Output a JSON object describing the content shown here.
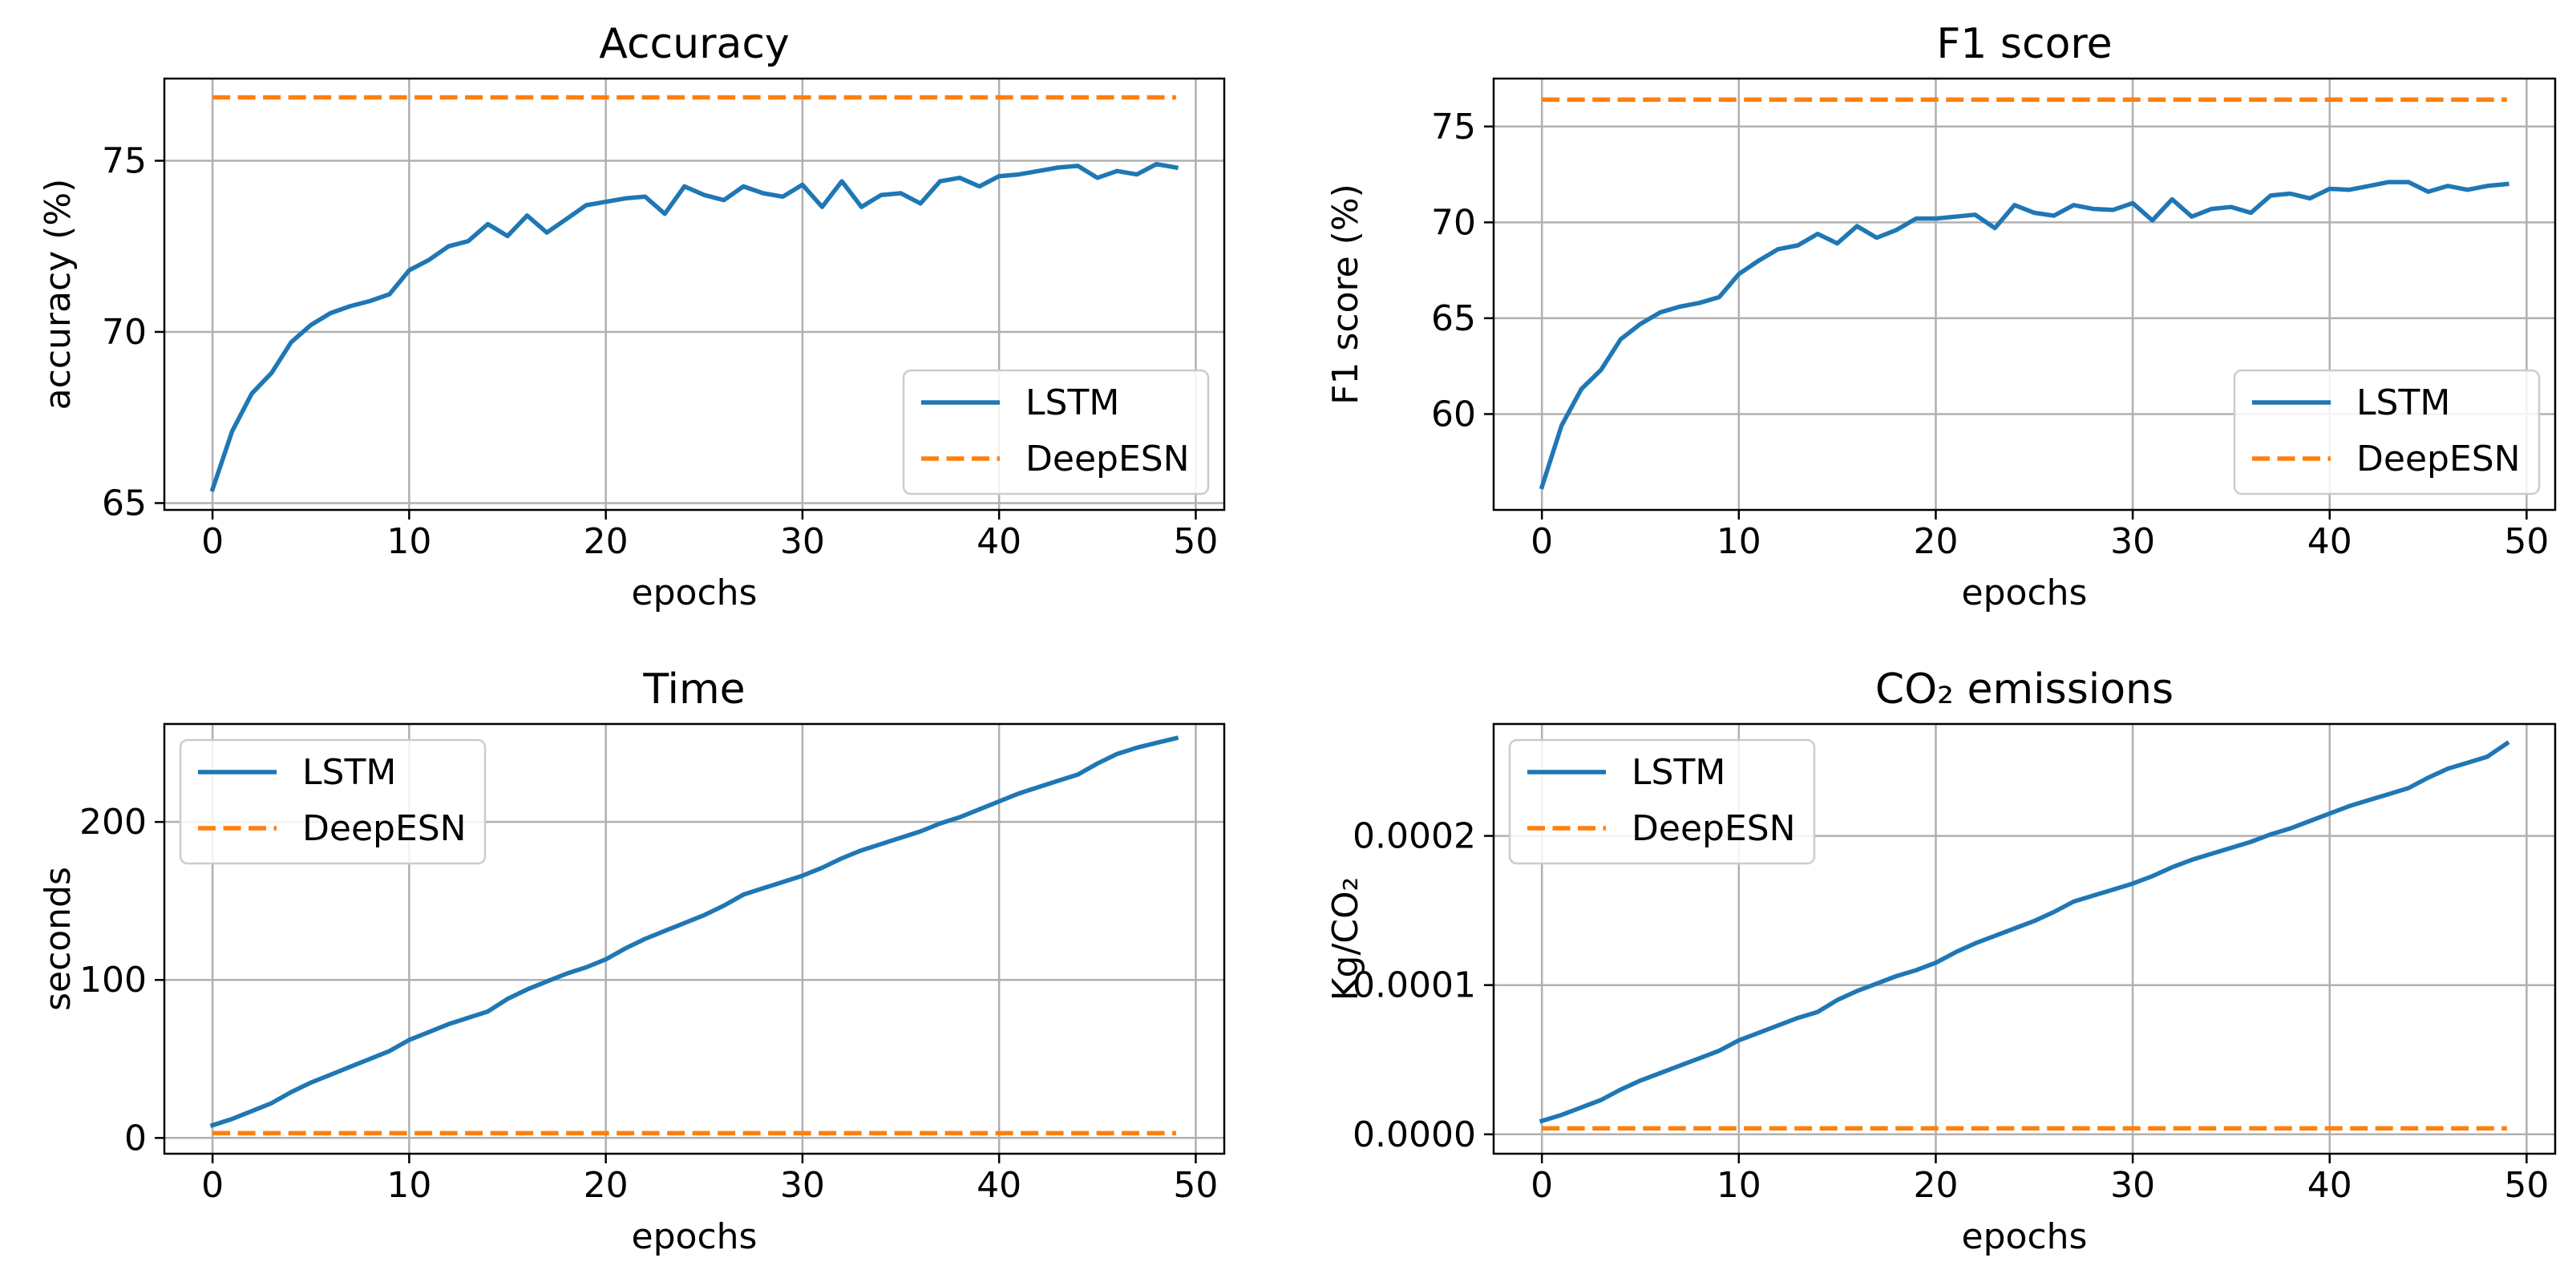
{
  "chart_data": [
    {
      "type": "line",
      "title": "Accuracy",
      "xlabel": "epochs",
      "ylabel": "accuracy (%)",
      "xlim": [
        -2.45,
        51.45
      ],
      "ylim": [
        64.8,
        77.4
      ],
      "xticks": [
        0,
        10,
        20,
        30,
        40,
        50
      ],
      "yticks": [
        65,
        70,
        75
      ],
      "ytick_labels": [
        "65",
        "70",
        "75"
      ],
      "legend_loc": "lower-right",
      "series": [
        {
          "name": "LSTM",
          "color": "#1f77b4",
          "style": "solid",
          "values": [
            65.4,
            67.1,
            68.2,
            68.8,
            69.7,
            70.2,
            70.55,
            70.75,
            70.9,
            71.1,
            71.8,
            72.1,
            72.5,
            72.65,
            73.15,
            72.8,
            73.4,
            72.9,
            73.3,
            73.7,
            73.8,
            73.9,
            73.95,
            73.45,
            74.25,
            74.0,
            73.85,
            74.25,
            74.05,
            73.95,
            74.3,
            73.65,
            74.4,
            73.65,
            74.0,
            74.05,
            73.75,
            74.4,
            74.5,
            74.25,
            74.55,
            74.6,
            74.7,
            74.8,
            74.85,
            74.5,
            74.7,
            74.6,
            74.9,
            74.8
          ]
        },
        {
          "name": "DeepESN",
          "color": "#ff7f0e",
          "style": "dashed",
          "values": [
            76.85,
            76.85
          ]
        }
      ]
    },
    {
      "type": "line",
      "title": "F1 score",
      "xlabel": "epochs",
      "ylabel": "F1 score (%)",
      "xlim": [
        -2.45,
        51.45
      ],
      "ylim": [
        55.0,
        77.5
      ],
      "xticks": [
        0,
        10,
        20,
        30,
        40,
        50
      ],
      "yticks": [
        60,
        65,
        70,
        75
      ],
      "ytick_labels": [
        "60",
        "65",
        "70",
        "75"
      ],
      "legend_loc": "lower-right",
      "series": [
        {
          "name": "LSTM",
          "color": "#1f77b4",
          "style": "solid",
          "values": [
            56.2,
            59.4,
            61.3,
            62.3,
            63.9,
            64.7,
            65.3,
            65.6,
            65.8,
            66.1,
            67.3,
            68.0,
            68.6,
            68.8,
            69.4,
            68.9,
            69.8,
            69.2,
            69.6,
            70.2,
            70.2,
            70.3,
            70.4,
            69.7,
            70.9,
            70.5,
            70.35,
            70.9,
            70.7,
            70.65,
            71.0,
            70.1,
            71.2,
            70.3,
            70.7,
            70.8,
            70.5,
            71.4,
            71.5,
            71.25,
            71.75,
            71.7,
            71.9,
            72.1,
            72.1,
            71.6,
            71.9,
            71.7,
            71.9,
            72.0
          ]
        },
        {
          "name": "DeepESN",
          "color": "#ff7f0e",
          "style": "dashed",
          "values": [
            76.4,
            76.4
          ]
        }
      ]
    },
    {
      "type": "line",
      "title": "Time",
      "xlabel": "epochs",
      "ylabel": "seconds",
      "xlim": [
        -2.45,
        51.45
      ],
      "ylim": [
        -10,
        262
      ],
      "xticks": [
        0,
        10,
        20,
        30,
        40,
        50
      ],
      "yticks": [
        0,
        100,
        200
      ],
      "ytick_labels": [
        "0",
        "100",
        "200"
      ],
      "legend_loc": "upper-left",
      "series": [
        {
          "name": "LSTM",
          "color": "#1f77b4",
          "style": "solid",
          "values": [
            8,
            12,
            17,
            22,
            29,
            35,
            40,
            45,
            50,
            55,
            62,
            67,
            72,
            76,
            80,
            88,
            94,
            99,
            104,
            108,
            113,
            120,
            126,
            131,
            136,
            141,
            147,
            154,
            158,
            162,
            166,
            171,
            177,
            182,
            186,
            190,
            194,
            199,
            203,
            208,
            213,
            218,
            222,
            226,
            230,
            237,
            243,
            247,
            250,
            253
          ]
        },
        {
          "name": "DeepESN",
          "color": "#ff7f0e",
          "style": "dashed",
          "values": [
            3,
            3
          ]
        }
      ]
    },
    {
      "type": "line",
      "title": "CO₂ emissions",
      "xlabel": "epochs",
      "ylabel": "Kg/CO₂",
      "xlim": [
        -2.45,
        51.45
      ],
      "ylim": [
        -1.3e-05,
        0.000275
      ],
      "xticks": [
        0,
        10,
        20,
        30,
        40,
        50
      ],
      "yticks": [
        0,
        0.0001,
        0.0002
      ],
      "ytick_labels": [
        "0.0000",
        "0.0001",
        "0.0002"
      ],
      "legend_loc": "upper-left",
      "series": [
        {
          "name": "LSTM",
          "color": "#1f77b4",
          "style": "solid",
          "values": [
            9e-06,
            1.3e-05,
            1.8e-05,
            2.3e-05,
            3e-05,
            3.6e-05,
            4.1e-05,
            4.6e-05,
            5.1e-05,
            5.6e-05,
            6.3e-05,
            6.8e-05,
            7.3e-05,
            7.8e-05,
            8.2e-05,
            9e-05,
            9.6e-05,
            0.000101,
            0.000106,
            0.00011,
            0.000115,
            0.000122,
            0.000128,
            0.000133,
            0.000138,
            0.000143,
            0.000149,
            0.000156,
            0.00016,
            0.000164,
            0.000168,
            0.000173,
            0.000179,
            0.000184,
            0.000188,
            0.000192,
            0.000196,
            0.000201,
            0.000205,
            0.00021,
            0.000215,
            0.00022,
            0.000224,
            0.000228,
            0.000232,
            0.000239,
            0.000245,
            0.000249,
            0.000253,
            0.000262
          ]
        },
        {
          "name": "DeepESN",
          "color": "#ff7f0e",
          "style": "dashed",
          "values": [
            4e-06,
            4e-06
          ]
        }
      ]
    }
  ]
}
